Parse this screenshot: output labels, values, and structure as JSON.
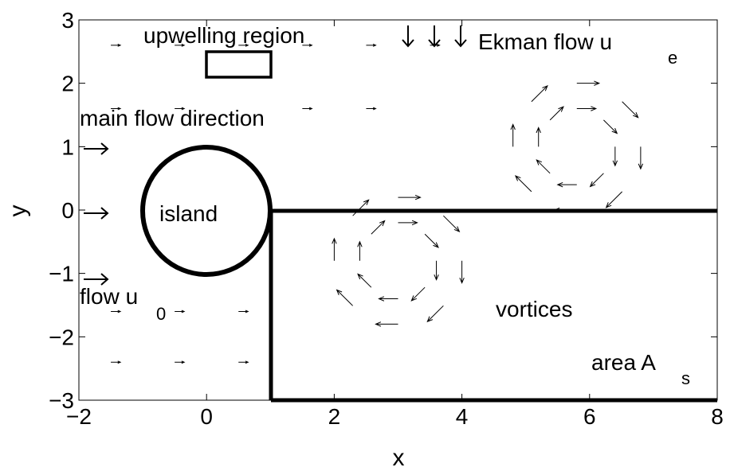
{
  "chart_data": {
    "type": "quiver",
    "xlabel": "x",
    "ylabel": "y",
    "xlim": [
      -2,
      8
    ],
    "ylim": [
      -3,
      3
    ],
    "xticks": [
      {
        "value": -2,
        "label": "−2"
      },
      0,
      2,
      4,
      6,
      8
    ],
    "yticks": [
      {
        "value": -3,
        "label": "−3"
      },
      {
        "value": -2,
        "label": "−2"
      },
      {
        "value": -1,
        "label": "−1"
      },
      0,
      1,
      2,
      3
    ],
    "color": "#000000",
    "annotations": [
      {
        "text": "upwelling region"
      },
      {
        "text": "Ekman flow u",
        "sub": "e"
      },
      {
        "text": "main flow direction"
      },
      {
        "text": "island"
      },
      {
        "text": "flow u",
        "sub": "0"
      },
      {
        "text": "vortices"
      },
      {
        "text": "area A",
        "sub": "s"
      }
    ],
    "x": [
      3.6,
      3.42,
      3.0,
      2.58,
      2.4,
      2.58,
      3.0,
      3.42,
      4.0,
      3.71,
      3.0,
      2.29,
      2.0,
      2.29,
      3.0,
      3.71,
      6.4,
      6.22,
      5.8,
      5.38,
      5.2,
      5.38,
      5.8,
      6.22,
      6.8,
      6.51,
      5.8,
      5.09,
      4.8,
      5.09,
      5.8,
      6.51,
      -1.5,
      -0.5,
      0.5,
      1.5,
      2.5,
      3.5,
      -1.5,
      -0.5,
      1.5,
      2.5,
      -1.5,
      -0.5,
      0.5,
      -1.5,
      -0.5,
      0.5
    ],
    "y": [
      -0.8,
      -0.38,
      -0.2,
      -0.38,
      -0.8,
      -1.22,
      -1.4,
      -1.22,
      -0.8,
      -0.09,
      0.2,
      -0.09,
      -0.8,
      -1.51,
      -1.8,
      -1.51,
      1.0,
      1.42,
      1.6,
      1.42,
      1.0,
      0.58,
      0.4,
      0.58,
      1.0,
      1.71,
      2.0,
      1.71,
      1.0,
      0.29,
      0.0,
      0.29,
      2.6,
      2.6,
      2.6,
      2.6,
      2.6,
      2.6,
      1.6,
      1.6,
      1.6,
      1.6,
      -1.6,
      -1.6,
      -1.6,
      -2.4,
      -2.4,
      -2.4
    ],
    "u": [
      0,
      0.21,
      0.3,
      0.21,
      0,
      -0.21,
      -0.3,
      -0.21,
      0,
      0.25,
      0.35,
      0.25,
      0,
      -0.25,
      -0.35,
      -0.25,
      0,
      0.21,
      0.3,
      0.21,
      0,
      -0.21,
      -0.3,
      -0.21,
      0,
      0.25,
      0.35,
      0.25,
      0,
      -0.25,
      -0.35,
      -0.25,
      0.15,
      0.15,
      0.15,
      0.15,
      0.15,
      0.15,
      0.15,
      0.15,
      0.15,
      0.15,
      0.15,
      0.15,
      0.15,
      0.15,
      0.15,
      0.15
    ],
    "v": [
      -0.3,
      -0.21,
      0,
      0.21,
      0.3,
      0.21,
      0,
      -0.21,
      -0.35,
      -0.25,
      0,
      0.25,
      0.35,
      0.25,
      0,
      -0.25,
      -0.3,
      -0.21,
      0,
      0.21,
      0.3,
      0.21,
      0,
      -0.21,
      -0.35,
      -0.25,
      0,
      0.25,
      0.35,
      0.25,
      0,
      -0.25,
      0,
      0,
      0,
      0,
      0,
      0,
      0,
      0,
      0,
      0,
      0,
      0,
      0,
      0,
      0,
      0
    ]
  }
}
